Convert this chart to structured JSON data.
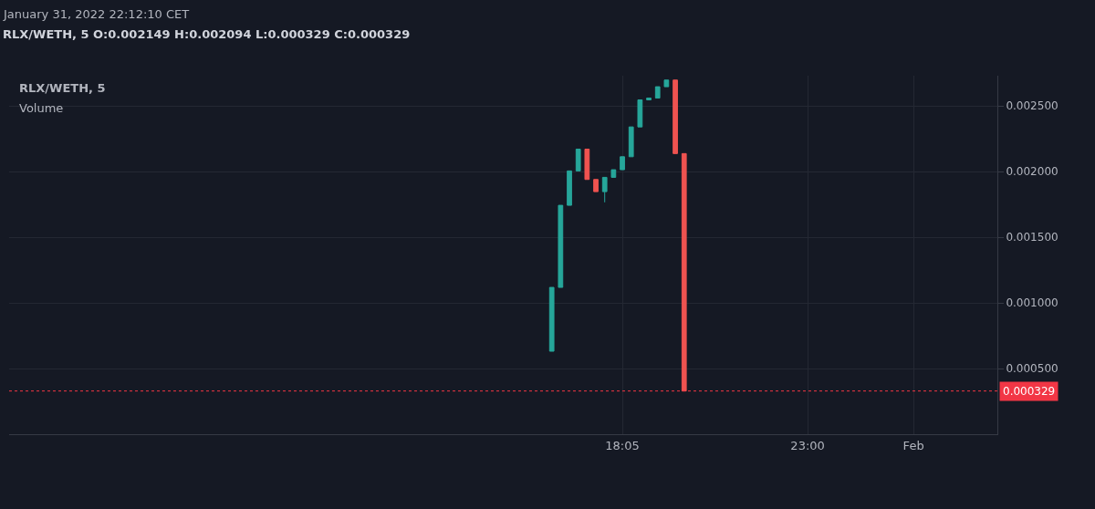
{
  "chart_data": {
    "type": "candlestick",
    "title": "RLX/WETH, 5",
    "subtitle": "RLX/WETH, 5 O:0.002149 H:0.002094 L:0.000329 C:0.000329",
    "annotations": [
      "January 31, 2022 22:12:10 CET",
      "Volume"
    ],
    "categories": [
      null,
      null,
      null,
      null,
      null,
      null,
      null,
      null,
      null,
      null,
      null,
      null,
      null,
      null,
      null,
      null,
      null,
      null,
      null,
      null,
      null,
      null,
      null,
      null,
      null,
      null,
      null,
      null,
      null,
      null,
      null,
      null,
      null,
      null,
      null,
      null,
      null,
      null,
      null,
      null,
      null,
      null,
      null,
      null,
      null,
      null,
      null,
      null,
      null,
      null,
      null,
      null,
      null,
      null,
      null,
      null,
      null,
      null,
      null,
      null,
      null,
      null,
      null,
      null,
      null,
      null,
      null,
      null,
      null,
      "18:05",
      null,
      null,
      null,
      null,
      null,
      null,
      null,
      null,
      null,
      null,
      null,
      null,
      null,
      null,
      null,
      null,
      null,
      null,
      null,
      null,
      "23:00",
      null,
      null,
      null,
      null,
      null,
      null,
      null,
      null,
      null,
      null,
      null,
      "Feb",
      null,
      null,
      null,
      null,
      null,
      null,
      null,
      null,
      null
    ],
    "ohlc": [
      null,
      null,
      null,
      null,
      null,
      null,
      null,
      null,
      null,
      null,
      null,
      null,
      null,
      null,
      null,
      null,
      null,
      null,
      null,
      null,
      null,
      null,
      null,
      null,
      null,
      null,
      null,
      null,
      null,
      null,
      null,
      null,
      null,
      null,
      null,
      null,
      null,
      null,
      null,
      null,
      null,
      null,
      null,
      null,
      null,
      null,
      null,
      null,
      null,
      null,
      null,
      null,
      null,
      null,
      null,
      null,
      null,
      null,
      null,
      null,
      null,
      [
        0.000632,
        0.001118,
        0.000632,
        0.001118
      ],
      [
        0.001118,
        0.001743,
        0.001118,
        0.001743
      ],
      [
        0.001743,
        0.002005,
        0.001743,
        0.002005
      ],
      [
        0.002005,
        0.002171,
        0.002005,
        0.002171
      ],
      [
        0.002171,
        0.002171,
        0.00194,
        0.00194
      ],
      [
        0.00194,
        0.00194,
        0.001847,
        0.001847
      ],
      [
        0.001847,
        0.001956,
        0.001766,
        0.001956
      ],
      [
        0.001956,
        0.002014,
        0.001956,
        0.002014
      ],
      [
        0.002014,
        0.002113,
        0.002014,
        0.002113
      ],
      [
        0.002113,
        0.00234,
        0.002113,
        0.00234
      ],
      [
        0.00234,
        0.002546,
        0.00234,
        0.002546
      ],
      [
        0.002546,
        0.00256,
        0.002546,
        0.00256
      ],
      [
        0.00256,
        0.002646,
        0.00256,
        0.002646
      ],
      [
        0.002646,
        0.002697,
        0.002646,
        0.002697
      ],
      [
        0.002697,
        0.002697,
        0.002137,
        0.002137
      ],
      [
        0.002137,
        0.002137,
        0.000329,
        0.000329
      ],
      null,
      null,
      null,
      null,
      null,
      null,
      null,
      null,
      null,
      null,
      null,
      null,
      null,
      null,
      null,
      null,
      null,
      null,
      null,
      null,
      null,
      null,
      null,
      null,
      null,
      null,
      null,
      null,
      null,
      null,
      null,
      null,
      null,
      null,
      null
    ],
    "colors": [
      null,
      null,
      null,
      null,
      null,
      null,
      null,
      null,
      null,
      null,
      null,
      null,
      null,
      null,
      null,
      null,
      null,
      null,
      null,
      null,
      null,
      null,
      null,
      null,
      null,
      null,
      null,
      null,
      null,
      null,
      null,
      null,
      null,
      null,
      null,
      null,
      null,
      null,
      null,
      null,
      null,
      null,
      null,
      null,
      null,
      null,
      null,
      null,
      null,
      null,
      null,
      null,
      null,
      null,
      null,
      null,
      null,
      null,
      null,
      null,
      null,
      "#26a69a",
      "#26a69a",
      "#26a69a",
      "#26a69a",
      "#ef5350",
      "#ef5350",
      "#26a69a",
      "#26a69a",
      "#26a69a",
      "#26a69a",
      "#26a69a",
      "#26a69a",
      "#26a69a",
      "#26a69a",
      "#ef5350",
      "#ef5350",
      null,
      null,
      null,
      null,
      null,
      null,
      null,
      null,
      null,
      null,
      null,
      null,
      null,
      null,
      null,
      null,
      null,
      null,
      null,
      null,
      null,
      null,
      null,
      null,
      null,
      null,
      null,
      null,
      null,
      null,
      null,
      null,
      null,
      null,
      null
    ],
    "ylim": [
      0,
      0.00273
    ],
    "yticks": [
      {
        "value": 0.0005,
        "label": "0.000500"
      },
      {
        "value": 0.001,
        "label": "0.001000"
      },
      {
        "value": 0.0015,
        "label": "0.001500"
      },
      {
        "value": 0.002,
        "label": "0.002000"
      },
      {
        "value": 0.0025,
        "label": "0.002500"
      }
    ],
    "ref_lines": [
      {
        "axis": "y",
        "value": 0.000329,
        "label": "0.000329",
        "color": "#f23645",
        "line_style": "dotted"
      }
    ],
    "grid": true
  }
}
